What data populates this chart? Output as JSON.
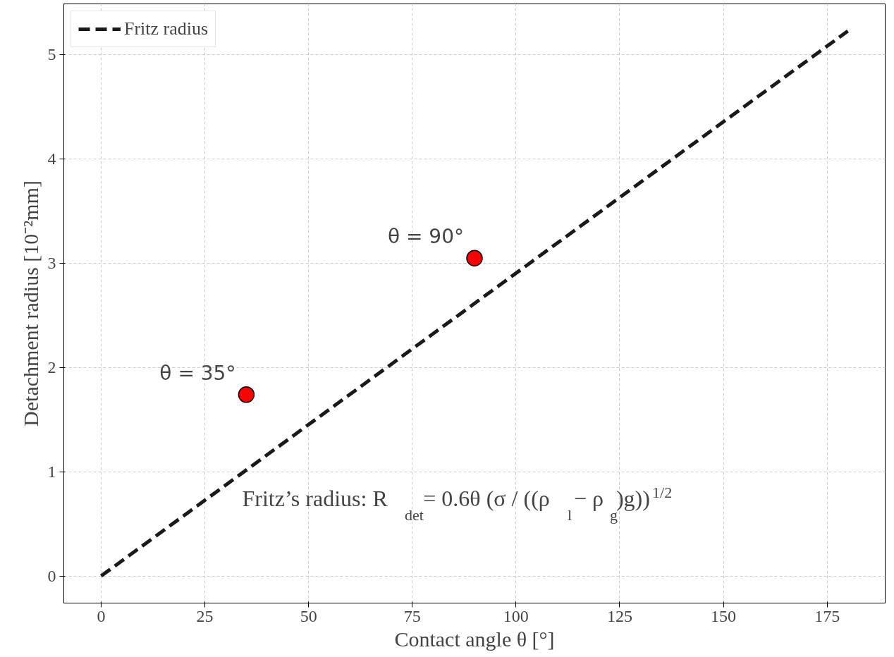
{
  "chart_data": {
    "type": "line",
    "xlabel": "Contact angle θ [°]",
    "ylabel": "Detachment radius [10⁻²mm]",
    "xlim": [
      -9,
      189
    ],
    "ylim": [
      -0.26,
      5.49
    ],
    "xticks": [
      0,
      25,
      50,
      75,
      100,
      125,
      150,
      175
    ],
    "yticks": [
      0,
      1,
      2,
      3,
      4,
      5
    ],
    "series": [
      {
        "name": "Fritz radius",
        "color": "#1a1a1a",
        "line_style": "dashed",
        "x": [
          0,
          180
        ],
        "values": [
          0,
          5.23
        ]
      },
      {
        "type": "scatter",
        "color": "#ff0000",
        "marker": "circle",
        "x": [
          35,
          90
        ],
        "values": [
          1.74,
          3.05
        ]
      }
    ],
    "annotations": [
      {
        "text": "θ = 35°",
        "x": 35,
        "y": 1.74
      },
      {
        "text": "θ = 90°",
        "x": 90,
        "y": 3.05
      },
      "Fritz’s radius:  R$_{det}$ = 0.6θ (σ / ((ρ$_{l}$ − ρ$_{g}$)g))$^{1/2}$"
    ],
    "grid": true,
    "legend": "top left"
  }
}
